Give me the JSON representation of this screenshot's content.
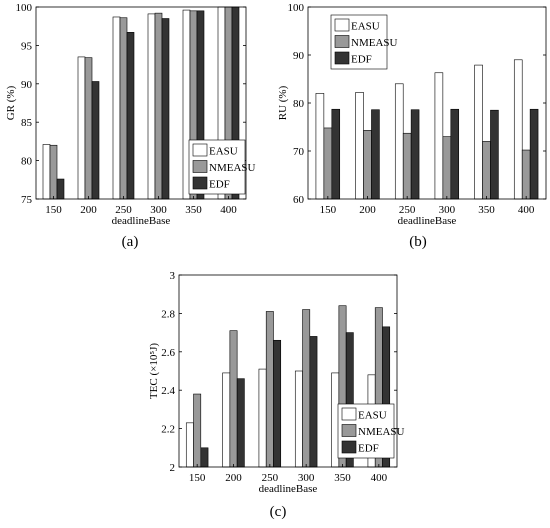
{
  "colors": {
    "EASU": "#ffffff",
    "NMEASU": "#999999",
    "EDF": "#333333",
    "axis": "#000000"
  },
  "chart_data": [
    {
      "type": "bar",
      "caption": "(a)",
      "xlabel": "deadlineBase",
      "ylabel": "GR (%)",
      "ylim": [
        75,
        100
      ],
      "yticks": [
        75,
        80,
        85,
        90,
        95,
        100
      ],
      "legend_position": "bottom-right",
      "grid": false,
      "categories": [
        "150",
        "200",
        "250",
        "300",
        "350",
        "400"
      ],
      "series": [
        {
          "name": "EASU",
          "values": [
            82.1,
            93.5,
            98.7,
            99.1,
            99.6,
            100
          ]
        },
        {
          "name": "NMEASU",
          "values": [
            82.0,
            93.4,
            98.6,
            99.2,
            99.5,
            100
          ]
        },
        {
          "name": "EDF",
          "values": [
            77.6,
            90.3,
            96.7,
            98.5,
            99.5,
            100
          ]
        }
      ]
    },
    {
      "type": "bar",
      "caption": "(b)",
      "xlabel": "deadlineBase",
      "ylabel": "RU (%)",
      "ylim": [
        60,
        100
      ],
      "yticks": [
        60,
        70,
        80,
        90,
        100
      ],
      "legend_position": "top-left",
      "grid": false,
      "categories": [
        "150",
        "200",
        "250",
        "300",
        "350",
        "400"
      ],
      "series": [
        {
          "name": "EASU",
          "values": [
            82.0,
            82.2,
            84.0,
            86.3,
            87.9,
            89.0
          ]
        },
        {
          "name": "NMEASU",
          "values": [
            74.8,
            74.3,
            73.7,
            73.0,
            72.0,
            70.2
          ]
        },
        {
          "name": "EDF",
          "values": [
            78.7,
            78.6,
            78.6,
            78.7,
            78.5,
            78.7
          ]
        }
      ]
    },
    {
      "type": "bar",
      "caption": "(c)",
      "xlabel": "deadlineBase",
      "ylabel": "TEC (×10⁵J)",
      "ylim": [
        2,
        3
      ],
      "yticks": [
        "2",
        "2.2",
        "2.4",
        "2.6",
        "2.8",
        "3"
      ],
      "legend_position": "bottom-right",
      "grid": false,
      "categories": [
        "150",
        "200",
        "250",
        "300",
        "350",
        "400"
      ],
      "series": [
        {
          "name": "EASU",
          "values": [
            2.23,
            2.49,
            2.51,
            2.5,
            2.49,
            2.48
          ]
        },
        {
          "name": "NMEASU",
          "values": [
            2.38,
            2.71,
            2.81,
            2.82,
            2.84,
            2.83
          ]
        },
        {
          "name": "EDF",
          "values": [
            2.1,
            2.46,
            2.66,
            2.68,
            2.7,
            2.73
          ]
        }
      ]
    }
  ]
}
